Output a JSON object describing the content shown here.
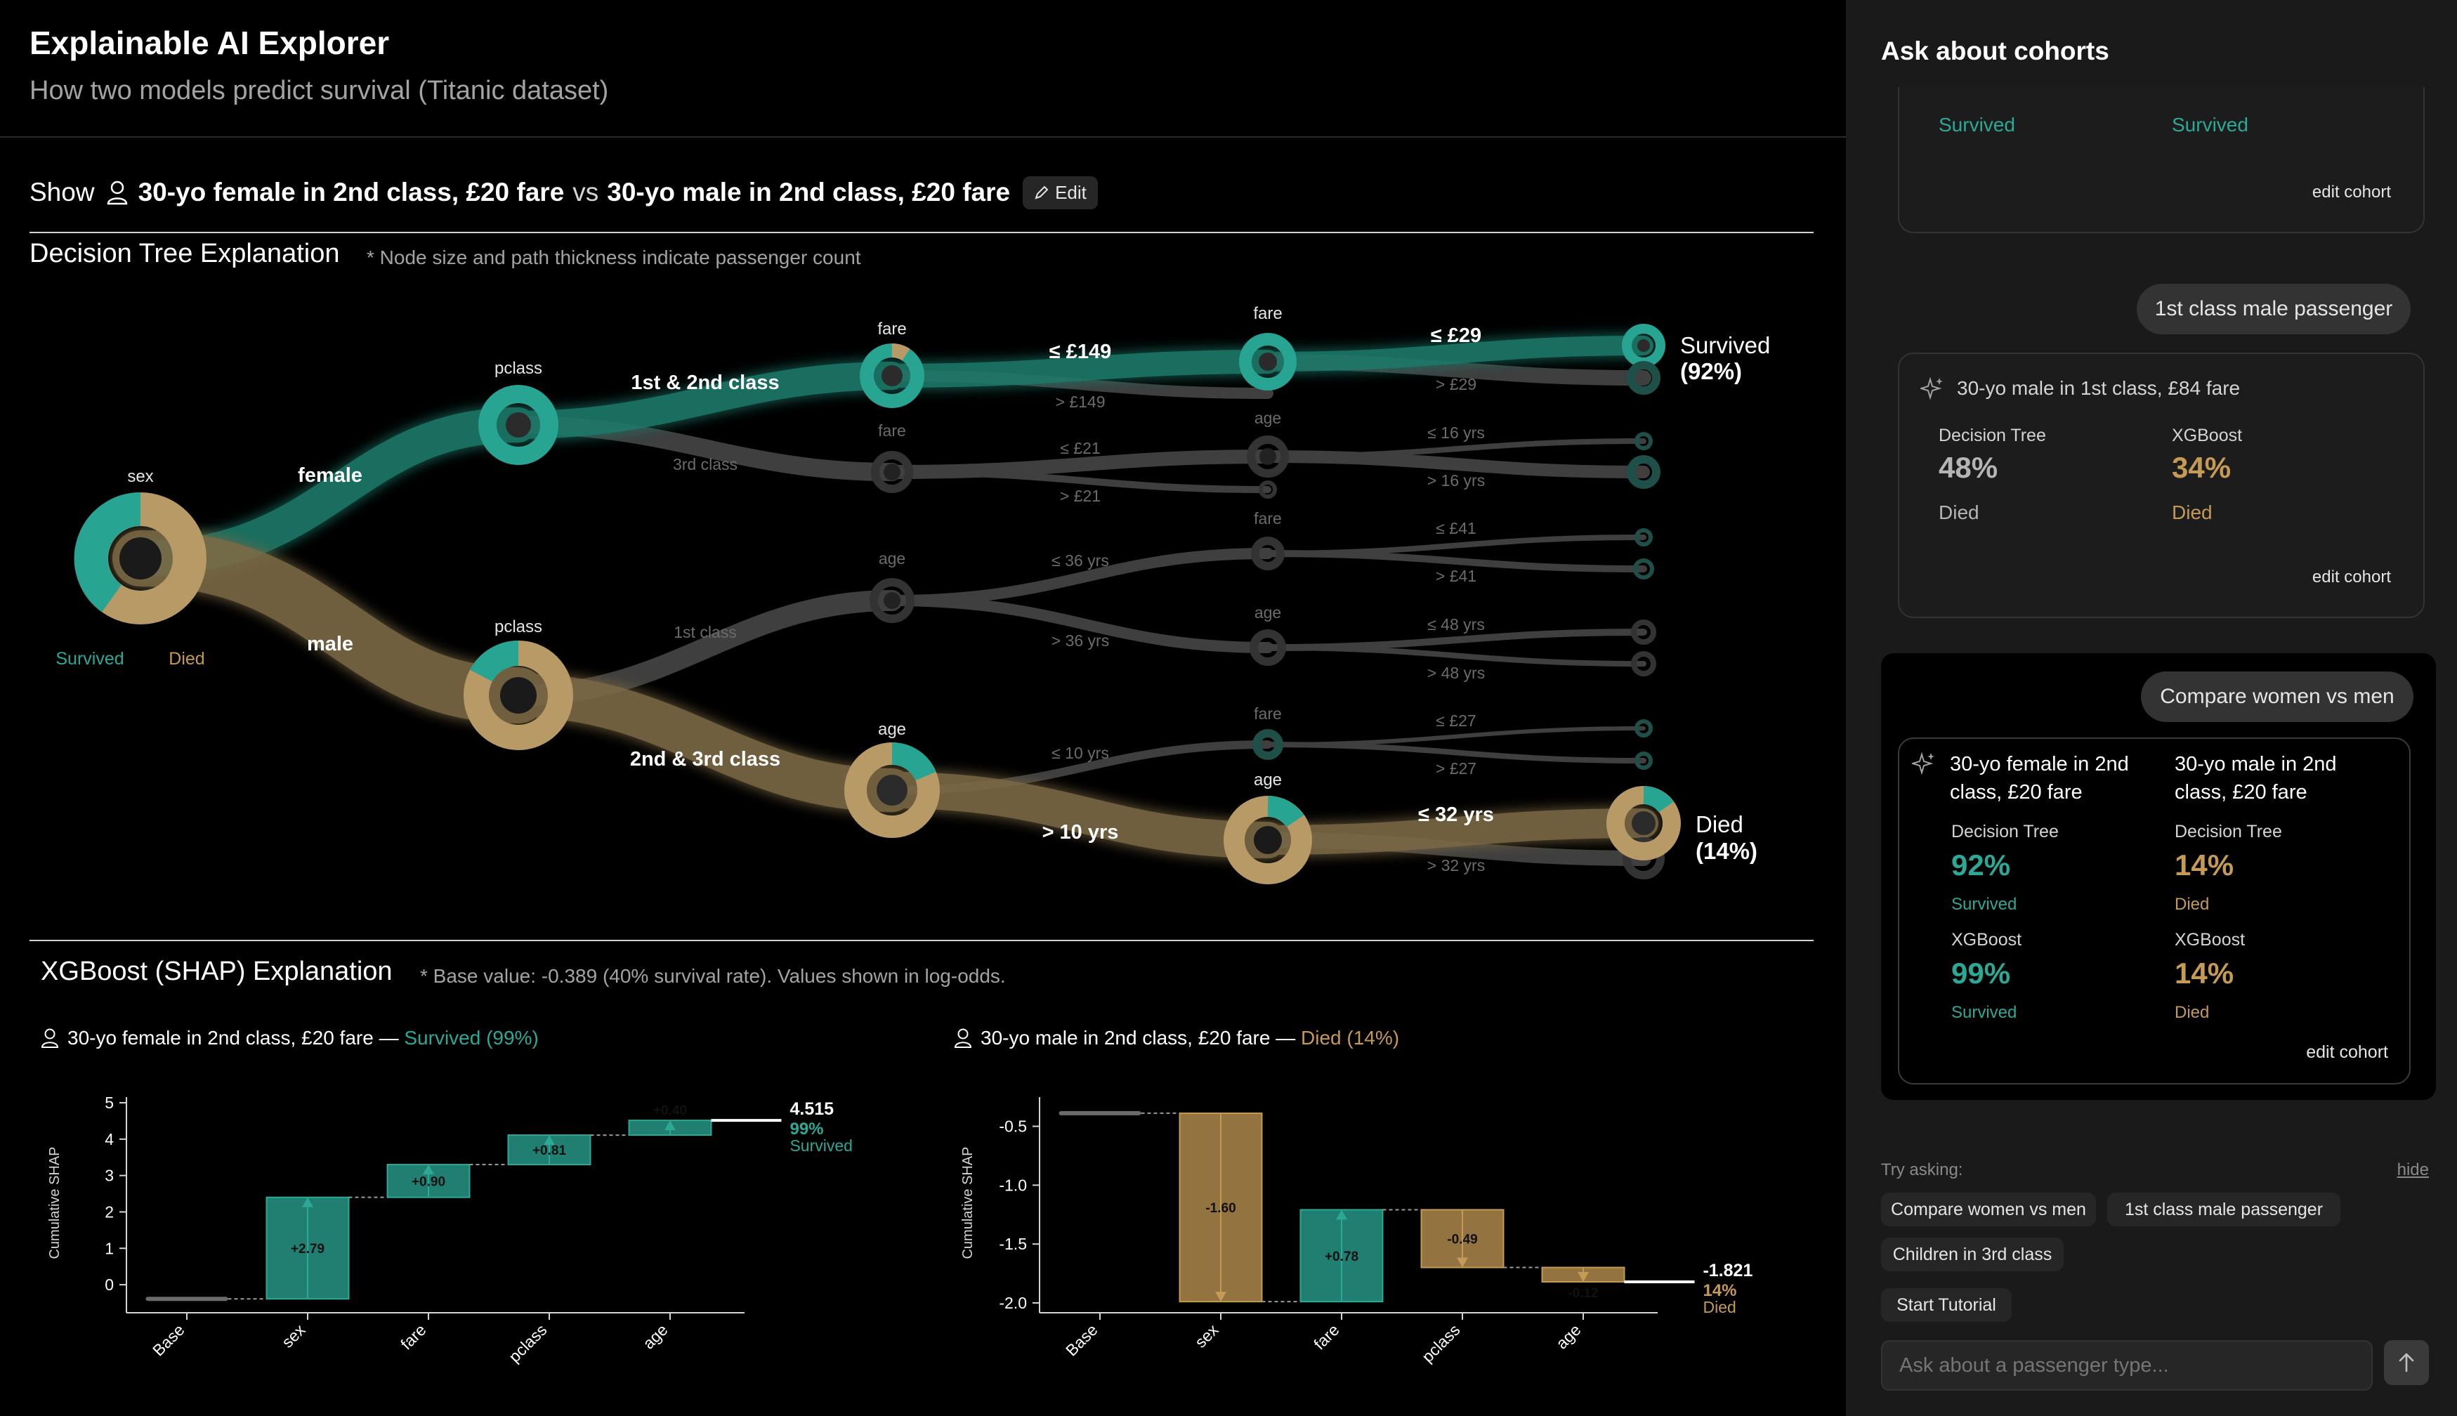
{
  "header": {
    "title": "Explainable AI Explorer",
    "subtitle": "How two models predict survival (Titanic dataset)"
  },
  "show_row": {
    "show_label": "Show",
    "cohort_a": "30-yo female in 2nd class, £20 fare",
    "vs_label": "vs",
    "cohort_b": "30-yo male in 2nd class, £20 fare",
    "edit_label": "Edit"
  },
  "tree": {
    "title": "Decision Tree Explanation",
    "note": "* Node size and path thickness indicate passenger count",
    "legend": {
      "survived": "Survived",
      "died": "Died"
    },
    "node_labels": {
      "root": "sex",
      "f_pclass": "pclass",
      "f_fare1": "fare",
      "f_fare2": "fare",
      "f_fare3": "fare",
      "f_age3": "age",
      "m_pclass": "pclass",
      "m_age1": "age",
      "m_age2": "age",
      "m_fare4": "fare",
      "m_age4": "age",
      "m_age5": "age"
    },
    "edge_labels": {
      "female": "female",
      "male": "male",
      "f12": "1st & 2nd class",
      "f3": "3rd class",
      "le149": "≤ £149",
      "gt149": "> £149",
      "le29": "≤ £29",
      "gt29": "> £29",
      "le21": "≤ £21",
      "gt21": "> £21",
      "le16": "≤ 16 yrs",
      "gt16": "> 16 yrs",
      "m1": "1st class",
      "m23": "2nd & 3rd class",
      "le36": "≤ 36 yrs",
      "gt36": "> 36 yrs",
      "le41": "≤ £41",
      "gt41": "> £41",
      "le48": "≤ 48 yrs",
      "gt48": "> 48 yrs",
      "le10": "≤ 10 yrs",
      "gt10": "> 10 yrs",
      "le27": "≤ £27",
      "gt27": "> £27",
      "le32": "≤ 32 yrs",
      "gt32": "> 32 yrs"
    },
    "outcome_top": {
      "label": "Survived",
      "pct": "(92%)"
    },
    "outcome_bottom": {
      "label": "Died",
      "pct": "(14%)"
    }
  },
  "shap": {
    "title": "XGBoost (SHAP) Explanation",
    "note": "* Base value: -0.389 (40% survival rate). Values shown in log-odds.",
    "colors": {
      "positive": "#2ba996",
      "negative": "#c49a55"
    },
    "charts": [
      {
        "cohort": "30-yo female in 2nd class, £20 fare — ",
        "outcome_text": "Survived (99%)",
        "ylabel": "Cumulative SHAP",
        "yticks": [
          "5",
          "4",
          "3",
          "2",
          "1",
          "0"
        ],
        "final_value": "4.515",
        "final_pct": "99%",
        "final_outcome": "Survived",
        "bars": [
          {
            "cat": "Base",
            "label": ""
          },
          {
            "cat": "sex",
            "label": "+2.79"
          },
          {
            "cat": "fare",
            "label": "+0.90"
          },
          {
            "cat": "pclass",
            "label": "+0.81"
          },
          {
            "cat": "age",
            "label": "+0.40"
          }
        ]
      },
      {
        "cohort": "30-yo male in 2nd class, £20 fare — ",
        "outcome_text": "Died (14%)",
        "ylabel": "Cumulative SHAP",
        "yticks": [
          "-0.5",
          "-1.0",
          "-1.5",
          "-2.0"
        ],
        "final_value": "-1.821",
        "final_pct": "14%",
        "final_outcome": "Died",
        "bars": [
          {
            "cat": "Base",
            "label": ""
          },
          {
            "cat": "sex",
            "label": "-1.60"
          },
          {
            "cat": "fare",
            "label": "+0.78"
          },
          {
            "cat": "pclass",
            "label": "-0.49"
          },
          {
            "cat": "age",
            "label": "-0.12"
          }
        ]
      }
    ]
  },
  "chart_data": [
    {
      "type": "bar",
      "title": "30-yo female in 2nd class, £20 fare — Survived (99%)",
      "ylabel": "Cumulative SHAP",
      "categories": [
        "Base",
        "sex",
        "fare",
        "pclass",
        "age"
      ],
      "start": [
        -0.389,
        -0.389,
        2.401,
        3.301,
        4.111
      ],
      "end": [
        -0.389,
        2.401,
        3.301,
        4.111,
        4.515
      ],
      "contributions": [
        0,
        2.79,
        0.9,
        0.81,
        0.4
      ],
      "final": 4.515,
      "ylim": [
        -0.5,
        5
      ]
    },
    {
      "type": "bar",
      "title": "30-yo male in 2nd class, £20 fare — Died (14%)",
      "ylabel": "Cumulative SHAP",
      "categories": [
        "Base",
        "sex",
        "fare",
        "pclass",
        "age"
      ],
      "start": [
        -0.389,
        -0.389,
        -1.989,
        -1.209,
        -1.699
      ],
      "end": [
        -0.389,
        -1.989,
        -1.209,
        -1.699,
        -1.821
      ],
      "contributions": [
        0,
        -1.6,
        0.78,
        -0.49,
        -0.12
      ],
      "final": -1.821,
      "ylim": [
        -2.0,
        -0.3
      ]
    }
  ],
  "sidebar": {
    "title": "Ask about cohorts",
    "card1": {
      "left_outcome": "Survived",
      "right_outcome": "Survived",
      "edit": "edit cohort"
    },
    "msg1": "1st class male passenger",
    "card2": {
      "cohort": "30-yo male in 1st class, £84 fare",
      "dt_label": "Decision Tree",
      "dt_pct": "48%",
      "dt_outcome": "Died",
      "xgb_label": "XGBoost",
      "xgb_pct": "34%",
      "xgb_outcome": "Died",
      "edit": "edit cohort"
    },
    "msg2": "Compare women vs men",
    "card3": {
      "left_cohort": "30-yo female in 2nd class, £20 fare",
      "right_cohort": "30-yo male in 2nd class, £20 fare",
      "left_dt_label": "Decision Tree",
      "left_dt_pct": "92%",
      "left_dt_outcome": "Survived",
      "left_xgb_label": "XGBoost",
      "left_xgb_pct": "99%",
      "left_xgb_outcome": "Survived",
      "right_dt_label": "Decision Tree",
      "right_dt_pct": "14%",
      "right_dt_outcome": "Died",
      "right_xgb_label": "XGBoost",
      "right_xgb_pct": "14%",
      "right_xgb_outcome": "Died",
      "edit": "edit cohort"
    },
    "try_asking": "Try asking:",
    "hide": "hide",
    "suggestions": [
      "Compare women vs men",
      "1st class male passenger",
      "Children in 3rd class"
    ],
    "tutorial": "Start Tutorial",
    "input_placeholder": "Ask about a passenger type..."
  }
}
